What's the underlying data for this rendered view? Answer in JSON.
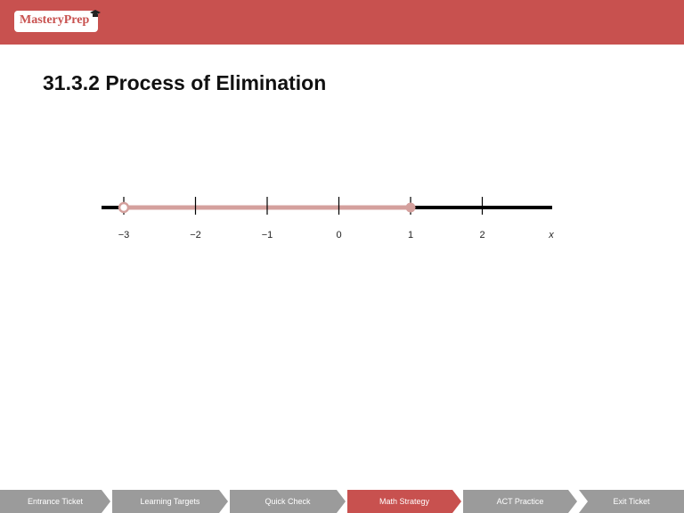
{
  "header": {
    "logo_text": "MasteryPrep",
    "brand_color": "#c8514f"
  },
  "page_title": "31.3.2 Process of Elimination",
  "number_line": {
    "tick_labels": [
      "−3",
      "−2",
      "−1",
      "0",
      "1",
      "2"
    ],
    "variable_label": "x",
    "open_point": -3,
    "closed_point": 1,
    "highlight_color": "#d4a09d"
  },
  "nav": {
    "tabs": [
      {
        "label": "Entrance Ticket"
      },
      {
        "label": "Learning Targets"
      },
      {
        "label": "Quick Check"
      },
      {
        "label": "Math Strategy"
      },
      {
        "label": "ACT Practice"
      },
      {
        "label": "Exit Ticket"
      }
    ],
    "active_index": 3
  }
}
